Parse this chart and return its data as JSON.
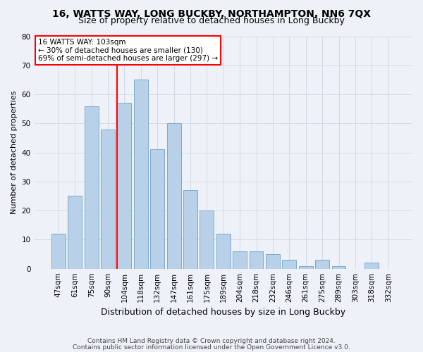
{
  "title1": "16, WATTS WAY, LONG BUCKBY, NORTHAMPTON, NN6 7QX",
  "title2": "Size of property relative to detached houses in Long Buckby",
  "xlabel": "Distribution of detached houses by size in Long Buckby",
  "ylabel": "Number of detached properties",
  "categories": [
    "47sqm",
    "61sqm",
    "75sqm",
    "90sqm",
    "104sqm",
    "118sqm",
    "132sqm",
    "147sqm",
    "161sqm",
    "175sqm",
    "189sqm",
    "204sqm",
    "218sqm",
    "232sqm",
    "246sqm",
    "261sqm",
    "275sqm",
    "289sqm",
    "303sqm",
    "318sqm",
    "332sqm"
  ],
  "values": [
    12,
    25,
    56,
    48,
    57,
    65,
    41,
    50,
    27,
    20,
    12,
    6,
    6,
    5,
    3,
    1,
    3,
    1,
    0,
    2,
    0
  ],
  "bar_color": "#b8d0e8",
  "bar_edge_color": "#7aaad0",
  "red_line_index": 4,
  "annotation_line1": "16 WATTS WAY: 103sqm",
  "annotation_line2": "← 30% of detached houses are smaller (130)",
  "annotation_line3": "69% of semi-detached houses are larger (297) →",
  "annotation_box_color": "white",
  "annotation_box_edge_color": "red",
  "ylim": [
    0,
    80
  ],
  "yticks": [
    0,
    10,
    20,
    30,
    40,
    50,
    60,
    70,
    80
  ],
  "footer1": "Contains HM Land Registry data © Crown copyright and database right 2024.",
  "footer2": "Contains public sector information licensed under the Open Government Licence v3.0.",
  "bg_color": "#eef2f8",
  "grid_color": "#c8d0dc",
  "title1_fontsize": 10,
  "title2_fontsize": 9,
  "xlabel_fontsize": 9,
  "ylabel_fontsize": 8,
  "tick_fontsize": 7.5,
  "footer_fontsize": 6.5
}
